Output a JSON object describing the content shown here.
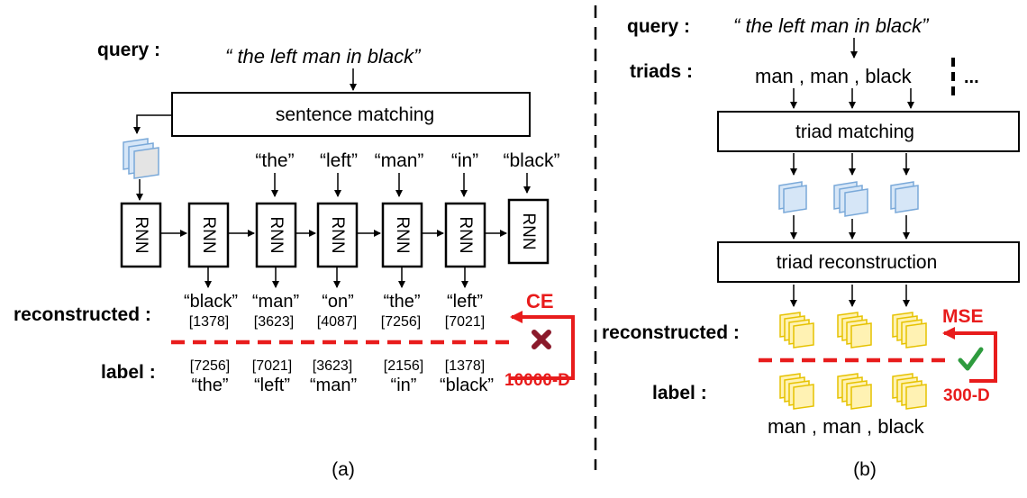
{
  "panel_a": {
    "query_label": "query :",
    "query_text": "“ the left man in black”",
    "sentence_matching": "sentence matching",
    "input_words": [
      "“the”",
      "“left”",
      "“man”",
      "“in”",
      "“black”"
    ],
    "rnn_label": "RNN",
    "reconstructed_label": "reconstructed :",
    "reconstructed_words": [
      "“black”",
      "“man”",
      "“on”",
      "“the”",
      "“left”"
    ],
    "reconstructed_ids": [
      "[1378]",
      "[3623]",
      "[4087]",
      "[7256]",
      "[7021]"
    ],
    "label_label": "label :",
    "label_ids": [
      "[7256]",
      "[7021]",
      "[3623]",
      "[2156]",
      "[1378]"
    ],
    "label_words": [
      "“the”",
      "“left”",
      "“man”",
      "“in”",
      "“black”"
    ],
    "loss_name": "CE",
    "dimension": "10000-D",
    "caption": "(a)"
  },
  "panel_b": {
    "query_label": "query :",
    "query_text": "“ the left man in black”",
    "triads_label": "triads :",
    "triads_text": "man , man , black",
    "ellipsis": "...",
    "triad_matching": "triad matching",
    "triad_reconstruction": "triad reconstruction",
    "reconstructed_label": "reconstructed :",
    "label_label": "label :",
    "label_text": "man , man , black",
    "loss_name": "MSE",
    "dimension": "300-D",
    "caption": "(b)"
  },
  "colors": {
    "red": "#e81c1c",
    "cross": "#8b1a2b",
    "check": "#2e9b3e",
    "blue_fill": "#d6e6f7",
    "blue_stroke": "#7aa9d9",
    "yellow_fill": "#fff2b3",
    "yellow_stroke": "#e6c200"
  },
  "icons": {
    "mismatch": "cross-icon",
    "match": "check-icon"
  }
}
